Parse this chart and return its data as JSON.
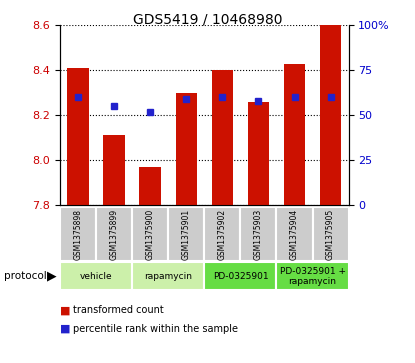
{
  "title": "GDS5419 / 10468980",
  "samples": [
    "GSM1375898",
    "GSM1375899",
    "GSM1375900",
    "GSM1375901",
    "GSM1375902",
    "GSM1375903",
    "GSM1375904",
    "GSM1375905"
  ],
  "transformed_counts": [
    8.41,
    8.11,
    7.97,
    8.3,
    8.4,
    8.26,
    8.43,
    8.6
  ],
  "percentile_ranks": [
    60,
    55,
    52,
    59,
    60,
    58,
    60,
    60
  ],
  "y_min": 7.8,
  "y_max": 8.6,
  "y_ticks_left": [
    7.8,
    8.0,
    8.2,
    8.4,
    8.6
  ],
  "y_ticks_right_vals": [
    0,
    25,
    50,
    75,
    100
  ],
  "protocols": [
    {
      "label": "vehicle",
      "start": 0,
      "end": 2,
      "color": "#ccf0aa"
    },
    {
      "label": "rapamycin",
      "start": 2,
      "end": 4,
      "color": "#ccf0aa"
    },
    {
      "label": "PD-0325901",
      "start": 4,
      "end": 6,
      "color": "#66dd44"
    },
    {
      "label": "PD-0325901 +\nrapamycin",
      "start": 6,
      "end": 8,
      "color": "#66dd44"
    }
  ],
  "bar_color": "#cc1100",
  "dot_color": "#2222cc",
  "left_tick_color": "#cc0000",
  "right_tick_color": "#0000cc",
  "sample_bg_color": "#cccccc",
  "legend_items": [
    {
      "label": "transformed count",
      "color": "#cc1100"
    },
    {
      "label": "percentile rank within the sample",
      "color": "#2222cc"
    }
  ]
}
